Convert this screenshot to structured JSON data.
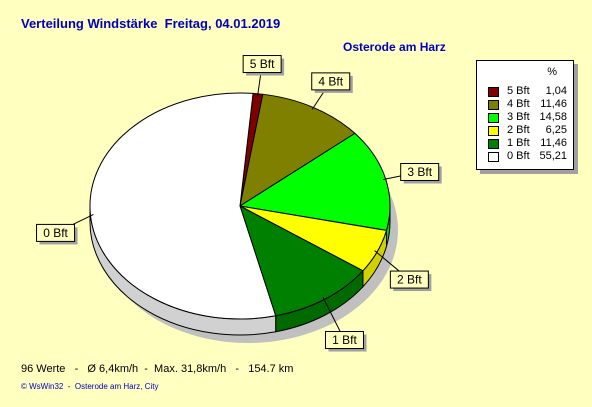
{
  "header": {
    "title": "Verteilung Windstärke  Freitag, 04.01.2019",
    "location": "Osterode am Harz"
  },
  "legend": {
    "header": "%",
    "items": [
      {
        "label": "5 Bft",
        "value": "1,04",
        "color": "#800000"
      },
      {
        "label": "4 Bft",
        "value": "11,46",
        "color": "#808000"
      },
      {
        "label": "3 Bft",
        "value": "14,58",
        "color": "#00ff00"
      },
      {
        "label": "2 Bft",
        "value": "6,25",
        "color": "#ffff00"
      },
      {
        "label": "1 Bft",
        "value": "11,46",
        "color": "#008000"
      },
      {
        "label": "0 Bft",
        "value": "55,21",
        "color": "#ffffff"
      }
    ]
  },
  "footer": {
    "stats": "96 Werte   -   Ø 6,4km/h  -  Max. 31,8km/h   -   154.7 km",
    "credit": "© WsWin32  -  Osterode am Harz, City"
  },
  "chart_data": {
    "type": "pie",
    "title": "Verteilung Windstärke  Freitag, 04.01.2019",
    "categories": [
      "5 Bft",
      "4 Bft",
      "3 Bft",
      "2 Bft",
      "1 Bft",
      "0 Bft"
    ],
    "values": [
      1.04,
      11.46,
      14.58,
      6.25,
      11.46,
      55.21
    ],
    "colors": [
      "#800000",
      "#808000",
      "#00ff00",
      "#ffff00",
      "#008000",
      "#ffffff"
    ],
    "unit": "%",
    "legend": "right"
  }
}
